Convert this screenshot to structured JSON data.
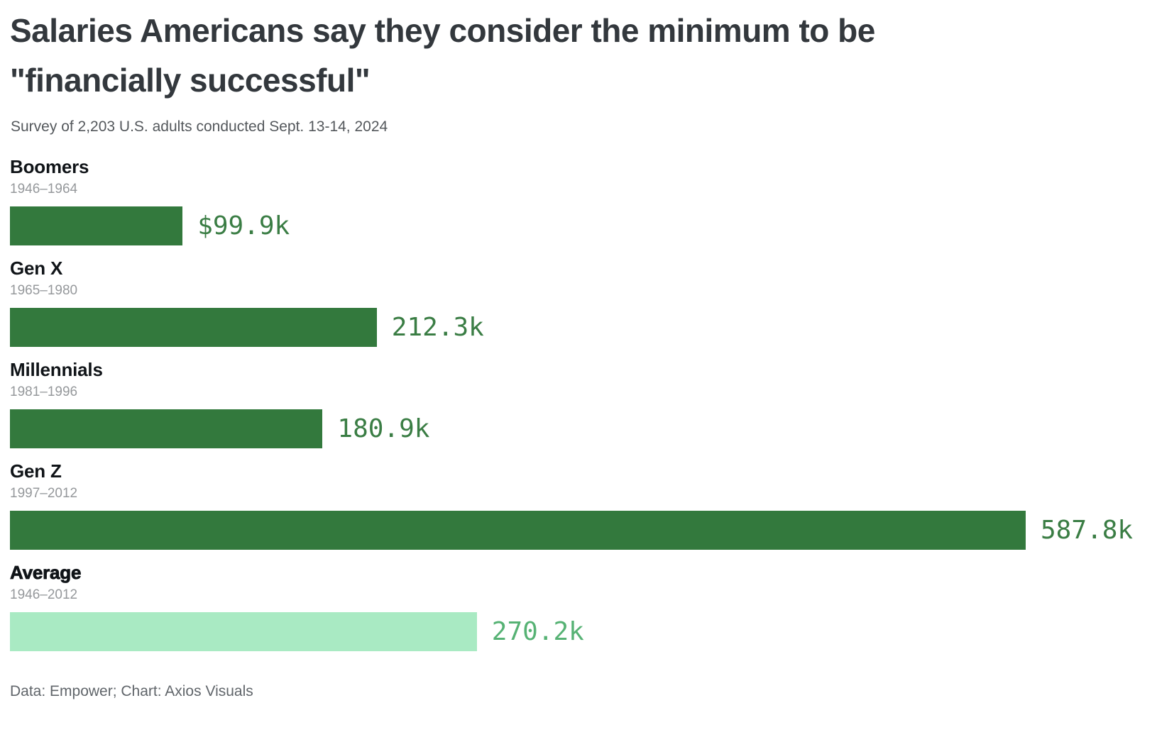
{
  "title": "Salaries Americans say they consider the minimum to be \"financially successful\"",
  "subtitle": "Survey of 2,203 U.S. adults conducted Sept. 13-14, 2024",
  "footer": "Data: Empower; Chart: Axios Visuals",
  "colors": {
    "bar_dark_green": "#33793d",
    "bar_light_green": "#a9eac3",
    "value_label_dark_green": "#3a7d44",
    "value_label_light_green": "#56b274",
    "title_text": "#33383d",
    "subtitle_text": "#54585c",
    "category_text": "#101418",
    "years_text": "#95989b",
    "footer_text": "#60656a"
  },
  "chart_data": {
    "type": "bar",
    "orientation": "horizontal",
    "title": "Salaries Americans say they consider the minimum to be \"financially successful\"",
    "subtitle": "Survey of 2,203 U.S. adults conducted Sept. 13-14, 2024",
    "source": "Data: Empower; Chart: Axios Visuals",
    "unit": "USD thousands per year",
    "categories": [
      "Boomers",
      "Gen X",
      "Millennials",
      "Gen Z",
      "Average"
    ],
    "category_sublabels": [
      "1946–1964",
      "1965–1980",
      "1981–1996",
      "1997–2012",
      "1946–2012"
    ],
    "values": [
      99.9,
      212.3,
      180.9,
      587.8,
      270.2
    ],
    "max_value": 587.8,
    "xlim": [
      0,
      587.8
    ],
    "grid": false,
    "axes_visible": false,
    "legend": false,
    "rows": [
      {
        "name": "Boomers",
        "years": "1946–1964",
        "value": 99.9,
        "value_label": "$99.9k",
        "bar_color": "#33793d",
        "label_color": "#3a7d44",
        "emphasis": false
      },
      {
        "name": "Gen X",
        "years": "1965–1980",
        "value": 212.3,
        "value_label": "212.3k",
        "bar_color": "#33793d",
        "label_color": "#3a7d44",
        "emphasis": false
      },
      {
        "name": "Millennials",
        "years": "1981–1996",
        "value": 180.9,
        "value_label": "180.9k",
        "bar_color": "#33793d",
        "label_color": "#3a7d44",
        "emphasis": false
      },
      {
        "name": "Gen Z",
        "years": "1997–2012",
        "value": 587.8,
        "value_label": "587.8k",
        "bar_color": "#33793d",
        "label_color": "#3a7d44",
        "emphasis": false
      },
      {
        "name": "Average",
        "years": "1946–2012",
        "value": 270.2,
        "value_label": "270.2k",
        "bar_color": "#a9eac3",
        "label_color": "#56b274",
        "emphasis": true
      }
    ]
  }
}
